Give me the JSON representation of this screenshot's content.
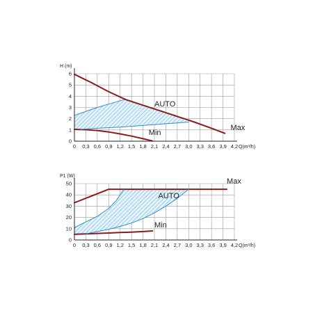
{
  "chart_data": [
    {
      "type": "line",
      "ylabel": "H (m)",
      "xlabel": "Q(m³/h)",
      "xlim": [
        0,
        4.2
      ],
      "ylim": [
        0,
        6
      ],
      "xticks": [
        "0",
        "0,3",
        "0,6",
        "0,9",
        "1,2",
        "1,5",
        "1,8",
        "2,1",
        "2,4",
        "2,7",
        "3,0",
        "3,3",
        "3,6",
        "3,9",
        "4,2"
      ],
      "yticks": [
        "0",
        "1",
        "2",
        "3",
        "4",
        "5",
        "6"
      ],
      "grid": true,
      "colors": {
        "max_min": "#8b1a1a",
        "auto": "#2a8fc8",
        "hatch": "#4aa6d6",
        "fill": "#e4f2f9"
      },
      "series": [
        {
          "name": "Max",
          "style": "thick",
          "x": [
            0,
            0.45,
            0.9,
            1.35,
            1.8,
            2.25,
            2.7,
            3.15,
            3.6,
            3.95
          ],
          "y": [
            5.95,
            5.2,
            4.4,
            3.7,
            3.2,
            2.7,
            2.2,
            1.7,
            1.15,
            0.7
          ]
        },
        {
          "name": "Min",
          "style": "thick",
          "x": [
            0,
            0.3,
            0.6,
            0.9,
            1.2,
            1.5,
            1.8,
            2.05
          ],
          "y": [
            1.05,
            1.02,
            0.95,
            0.82,
            0.65,
            0.45,
            0.22,
            0.02
          ]
        },
        {
          "name": "AUTO",
          "style": "thin",
          "x": [
            0,
            0.3,
            0.6,
            0.9,
            1.2,
            1.3
          ],
          "y": [
            2.3,
            2.65,
            3.0,
            3.3,
            3.6,
            3.7
          ]
        },
        {
          "name": "",
          "style": "thin",
          "x": [
            0.15,
            0.6,
            1.2,
            1.8,
            2.4,
            3.0
          ],
          "y": [
            1.05,
            1.15,
            1.25,
            1.4,
            1.55,
            1.7
          ]
        }
      ],
      "labels": [
        {
          "text": "AUTO",
          "x": 2.1,
          "y": 3.1
        },
        {
          "text": "Max",
          "x": 4.1,
          "y": 1.0
        },
        {
          "text": "Min",
          "x": 1.95,
          "y": 0.55
        }
      ]
    },
    {
      "type": "line",
      "ylabel": "P1 (W)",
      "xlabel": "Q(m³/h)",
      "xlim": [
        0,
        4.2
      ],
      "ylim": [
        0,
        50
      ],
      "xticks": [
        "0",
        "0,3",
        "0,6",
        "0,9",
        "1,2",
        "1,5",
        "1,8",
        "2,1",
        "2,4",
        "2,7",
        "3,0",
        "3,3",
        "3,6",
        "3,9",
        "4,2"
      ],
      "yticks": [
        "0",
        "10",
        "20",
        "30",
        "40",
        "50"
      ],
      "grid": true,
      "colors": {
        "max_min": "#8b1a1a",
        "auto": "#2a8fc8",
        "hatch": "#4aa6d6",
        "fill": "#e4f2f9"
      },
      "series": [
        {
          "name": "Max",
          "style": "thick",
          "x": [
            0,
            0.9,
            1.2,
            1.8,
            2.4,
            3.0,
            3.6,
            4.0
          ],
          "y": [
            33,
            45,
            45,
            45,
            45,
            45,
            45,
            45
          ]
        },
        {
          "name": "Min",
          "style": "thick",
          "x": [
            0,
            0.3,
            0.6,
            0.9,
            1.2,
            1.5,
            1.8,
            2.05
          ],
          "y": [
            5,
            5.4,
            5.8,
            6.2,
            6.6,
            7.0,
            7.5,
            8.0
          ]
        },
        {
          "name": "AUTO",
          "style": "thin",
          "x": [
            0,
            0.3,
            0.6,
            0.9,
            1.1,
            1.3
          ],
          "y": [
            11,
            16,
            21,
            28,
            35,
            45
          ]
        },
        {
          "name": "",
          "style": "thin",
          "x": [
            0.3,
            0.6,
            0.9,
            1.2,
            1.5,
            1.8,
            2.1,
            2.4,
            2.7,
            3.0
          ],
          "y": [
            5.5,
            7.5,
            9.5,
            12,
            15,
            19,
            24,
            30,
            37,
            45
          ]
        }
      ],
      "labels": [
        {
          "text": "AUTO",
          "x": 2.2,
          "y": 37
        },
        {
          "text": "Max",
          "x": 4.0,
          "y": 50
        },
        {
          "text": "Min",
          "x": 2.1,
          "y": 11
        }
      ]
    }
  ]
}
